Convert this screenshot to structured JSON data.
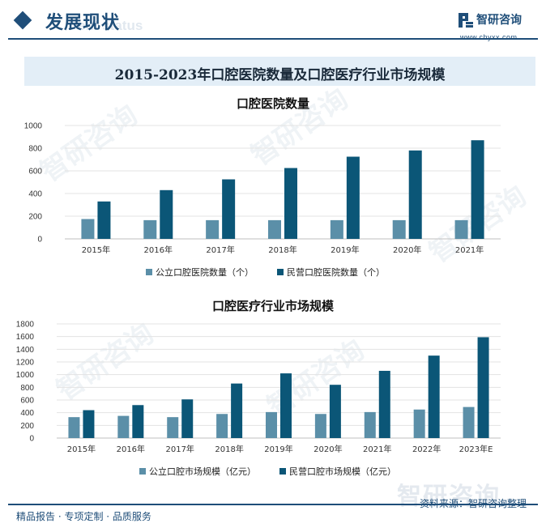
{
  "header": {
    "title": "发展现状",
    "title_en": "ent status",
    "brand_name": "智研咨询",
    "brand_url": "www.chyxx.com"
  },
  "banner_title": "2015-2023年口腔医院数量及口腔医疗行业市场规模",
  "watermark_text": "智研咨询",
  "chart_data": [
    {
      "type": "bar",
      "title": "口腔医院数量",
      "categories": [
        "2015年",
        "2016年",
        "2017年",
        "2018年",
        "2019年",
        "2020年",
        "2021年"
      ],
      "yticks": [
        "0",
        "200",
        "400",
        "600",
        "800",
        "1000"
      ],
      "ylim": [
        0,
        1000
      ],
      "series": [
        {
          "name": "公立口腔医院数量（个）",
          "color": "#5b8fa8",
          "values": [
            175,
            165,
            165,
            165,
            165,
            165,
            165
          ]
        },
        {
          "name": "民营口腔医院数量（个）",
          "color": "#0b5677",
          "values": [
            330,
            430,
            525,
            625,
            725,
            780,
            870
          ]
        }
      ],
      "grid": true,
      "legend": "bottom"
    },
    {
      "type": "bar",
      "title": "口腔医疗行业市场规模",
      "categories": [
        "2015年",
        "2016年",
        "2017年",
        "2018年",
        "2019年",
        "2020年",
        "2021年",
        "2022年",
        "2023年E"
      ],
      "yticks": [
        "0",
        "200",
        "400",
        "600",
        "800",
        "1000",
        "1200",
        "1400",
        "1600",
        "1800"
      ],
      "ylim": [
        0,
        1800
      ],
      "series": [
        {
          "name": "公立口腔市场规模（亿元）",
          "color": "#5b8fa8",
          "values": [
            330,
            350,
            330,
            380,
            410,
            380,
            410,
            450,
            490
          ]
        },
        {
          "name": "民营口腔市场规模（亿元）",
          "color": "#0b5677",
          "values": [
            440,
            520,
            610,
            860,
            1020,
            840,
            1060,
            1300,
            1590
          ]
        }
      ],
      "grid": true,
      "legend": "bottom"
    }
  ],
  "footer": {
    "left": "精品报告 · 专项定制 · 品质服务",
    "source": "资料来源：智研咨询整理"
  }
}
